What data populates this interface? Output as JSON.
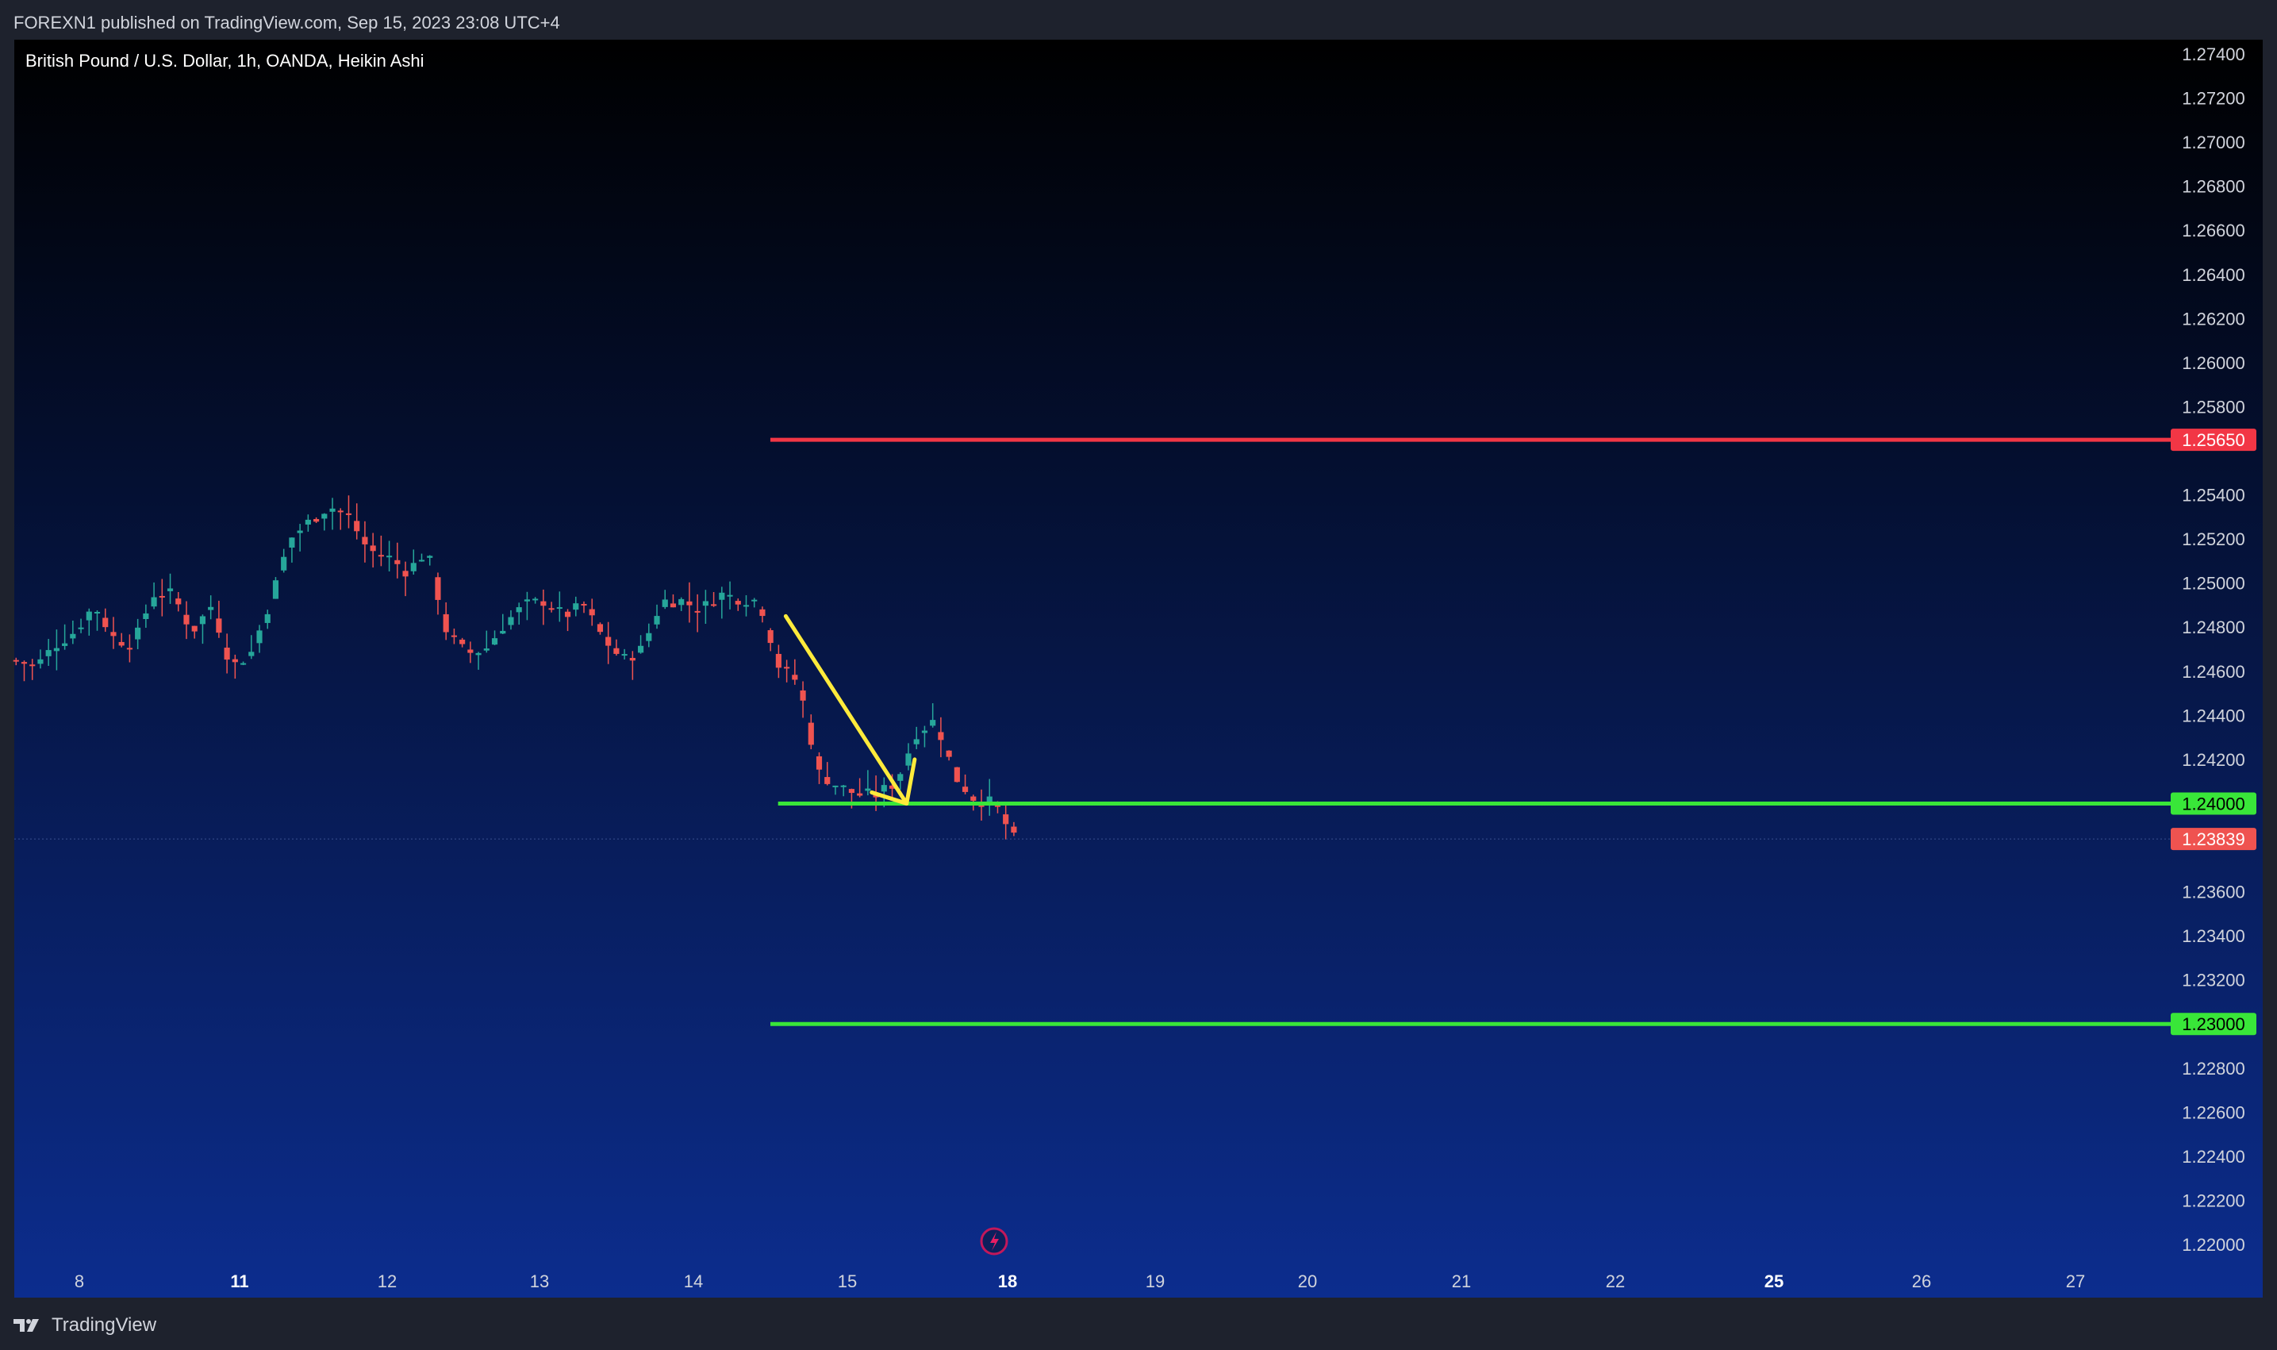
{
  "header": {
    "published_line": "FOREXN1 published on TradingView.com, Sep 15, 2023 23:08 UTC+4"
  },
  "footer": {
    "brand": "TradingView",
    "logo_icon": "tradingview-logo-icon"
  },
  "chart_data": {
    "type": "candlestick",
    "title": "British Pound / U.S. Dollar, 1h, OANDA, Heikin Ashi",
    "colors": {
      "background_top": "#000000",
      "background_bottom": "#0c2d8e",
      "up": "#26a69a",
      "down": "#ef5350",
      "resistance_line": "#f23645",
      "support_line": "#39e639",
      "arrow": "#ffeb3b",
      "axis_text": "#d1d4dc"
    },
    "y_axis": {
      "min": 1.22,
      "max": 1.274,
      "ticks": [
        "1.27400",
        "1.27200",
        "1.27000",
        "1.26800",
        "1.26600",
        "1.26400",
        "1.26200",
        "1.26000",
        "1.25800",
        "1.25400",
        "1.25200",
        "1.25000",
        "1.24800",
        "1.24600",
        "1.24400",
        "1.24200",
        "1.23600",
        "1.23400",
        "1.23200",
        "1.22800",
        "1.22600",
        "1.22400",
        "1.22200",
        "1.22000"
      ],
      "tick_values": [
        1.274,
        1.272,
        1.27,
        1.268,
        1.266,
        1.264,
        1.262,
        1.26,
        1.258,
        1.254,
        1.252,
        1.25,
        1.248,
        1.246,
        1.244,
        1.242,
        1.236,
        1.234,
        1.232,
        1.228,
        1.226,
        1.224,
        1.222,
        1.22
      ]
    },
    "x_axis": {
      "labels": [
        "8",
        "11",
        "12",
        "13",
        "14",
        "15",
        "18",
        "19",
        "20",
        "21",
        "22",
        "25",
        "26",
        "27"
      ],
      "bold": [
        false,
        true,
        false,
        false,
        false,
        false,
        true,
        false,
        false,
        false,
        false,
        true,
        false,
        false
      ],
      "day_index": [
        0,
        1,
        2,
        3,
        4,
        5,
        6,
        7,
        8,
        9,
        10,
        11,
        12,
        13
      ],
      "bar_start_day": -0.42,
      "bar_end_day": 6.07
    },
    "price_levels": [
      {
        "name": "resistance",
        "value": 1.2565,
        "label": "1.25650",
        "start_day": 4.5
      },
      {
        "name": "support-1",
        "value": 1.24,
        "label": "1.24000",
        "start_day": 4.55
      },
      {
        "name": "support-2",
        "value": 1.23,
        "label": "1.23000",
        "start_day": 4.5
      }
    ],
    "last_price": {
      "value": 1.23839,
      "label": "1.23839"
    },
    "arrow": {
      "points": [
        {
          "day": 4.6,
          "price": 1.2485
        },
        {
          "day": 5.37,
          "price": 1.24
        },
        {
          "day": 5.42,
          "price": 1.242
        }
      ]
    },
    "price_path": [
      [
        1.2465,
        1.2462
      ],
      [
        1.2472,
        1.2478
      ],
      [
        1.249,
        1.2475
      ],
      [
        1.2472,
        1.2495
      ],
      [
        1.2495,
        1.2478
      ],
      [
        1.249,
        1.2462
      ],
      [
        1.2468,
        1.2492
      ],
      [
        1.252,
        1.2528
      ],
      [
        1.2535,
        1.253
      ],
      [
        1.2515,
        1.2512
      ],
      [
        1.2505,
        1.2515
      ],
      [
        1.2478,
        1.2468
      ],
      [
        1.247,
        1.2482
      ],
      [
        1.249,
        1.2492
      ],
      [
        1.2485,
        1.249
      ],
      [
        1.2475,
        1.2465
      ],
      [
        1.247,
        1.2492
      ],
      [
        1.2492,
        1.2488
      ],
      [
        1.2495,
        1.2493
      ],
      [
        1.2492,
        1.2462
      ],
      [
        1.2455,
        1.2414
      ],
      [
        1.2408,
        1.2404
      ],
      [
        1.2404,
        1.241
      ],
      [
        1.2432,
        1.2438
      ],
      [
        1.2412,
        1.2402
      ],
      [
        1.24,
        1.2384
      ]
    ]
  },
  "watermark": {
    "icon": "lightning-icon"
  }
}
